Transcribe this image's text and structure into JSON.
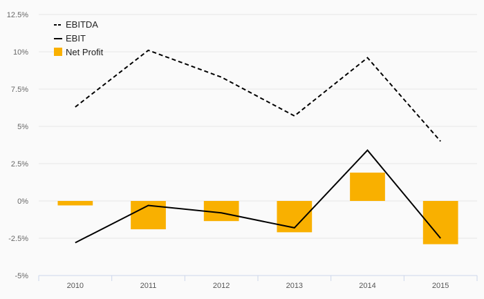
{
  "chart_data": {
    "type": "bar+line",
    "categories": [
      "2010",
      "2011",
      "2012",
      "2013",
      "2014",
      "2015"
    ],
    "ylim": [
      -5,
      12.5
    ],
    "yticks": [
      -5,
      -2.5,
      0,
      2.5,
      5,
      7.5,
      10,
      12.5
    ],
    "ytick_labels": [
      "-5%",
      "-2.5%",
      "0%",
      "2.5%",
      "5%",
      "7.5%",
      "10%",
      "12.5%"
    ],
    "grid": true,
    "legend_position": "top-left",
    "series": [
      {
        "name": "EBITDA",
        "kind": "line",
        "style": "dashed",
        "color": "#000000",
        "values": [
          6.3,
          10.1,
          8.3,
          5.7,
          9.6,
          4.0
        ]
      },
      {
        "name": "EBIT",
        "kind": "line",
        "style": "solid",
        "color": "#000000",
        "values": [
          -2.8,
          -0.3,
          -0.8,
          -1.8,
          3.4,
          -2.5
        ]
      },
      {
        "name": "Net Profit",
        "kind": "bar",
        "color": "#f9b000",
        "values": [
          -0.3,
          -1.9,
          -1.35,
          -2.1,
          1.9,
          -2.9
        ]
      }
    ]
  }
}
